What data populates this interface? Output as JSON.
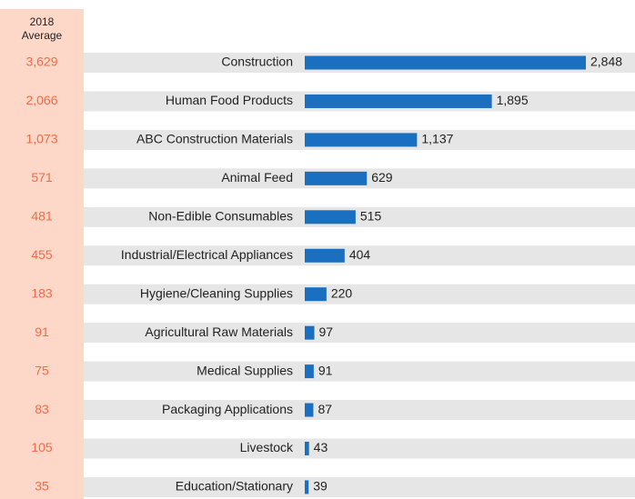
{
  "chart_data": {
    "type": "bar",
    "orientation": "horizontal",
    "color": "#1a6fc0",
    "categories": [
      "Construction",
      "Human Food Products",
      "ABC Construction Materials",
      "Animal Feed",
      "Non-Edible Consumables",
      "Industrial/Electrical Appliances",
      "Hygiene/Cleaning Supplies",
      "Agricultural Raw Materials",
      "Medical Supplies",
      "Packaging Applications",
      "Livestock",
      "Education/Stationary"
    ],
    "values": [
      2848,
      1895,
      1137,
      629,
      515,
      404,
      220,
      97,
      91,
      87,
      43,
      39
    ],
    "value_labels": [
      "2,848",
      "1,895",
      "1,137",
      "629",
      "515",
      "404",
      "220",
      "97",
      "91",
      "87",
      "43",
      "39"
    ],
    "reference_column": {
      "title": [
        "2018",
        "Average"
      ],
      "color": "#f26b4a",
      "labels": [
        "3,629",
        "2,066",
        "1,073",
        "571",
        "481",
        "455",
        "183",
        "91",
        "75",
        "83",
        "105",
        "35"
      ]
    }
  }
}
